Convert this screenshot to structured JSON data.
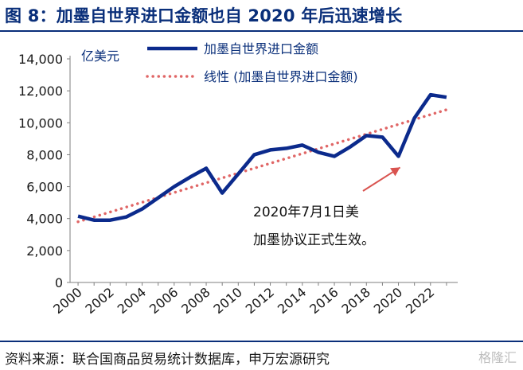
{
  "header": {
    "title": "图 8：加墨自世界进口金额也自 2020 年后迅速增长"
  },
  "footer": {
    "source": "资料来源：联合国商品贸易统计数据库，申万宏源研究",
    "watermark": "格隆汇"
  },
  "colors": {
    "title": "#0a2f7a",
    "series_line": "#0b2a8c",
    "trend_line": "#e06666"
  },
  "chart_data": {
    "type": "line",
    "unit_label": "亿美元",
    "x": [
      2000,
      2001,
      2002,
      2003,
      2004,
      2005,
      2006,
      2007,
      2008,
      2009,
      2010,
      2011,
      2012,
      2013,
      2014,
      2015,
      2016,
      2017,
      2018,
      2019,
      2020,
      2021,
      2022,
      2023
    ],
    "series": [
      {
        "name": "加墨自世界进口金额",
        "values": [
          4150,
          3900,
          3900,
          4100,
          4600,
          5300,
          6000,
          6600,
          7150,
          5600,
          6800,
          8000,
          8300,
          8400,
          8600,
          8150,
          7900,
          8500,
          9200,
          9100,
          7900,
          10300,
          11750,
          11600
        ]
      },
      {
        "name": "线性 (加墨自世界进口金额)",
        "style": "dotted",
        "values": [
          3800,
          4105,
          4410,
          4715,
          5020,
          5325,
          5630,
          5935,
          6240,
          6545,
          6850,
          7155,
          7460,
          7765,
          8070,
          8375,
          8680,
          8985,
          9290,
          9595,
          9900,
          10205,
          10510,
          10815
        ]
      }
    ],
    "y_ticks": [
      "0",
      "2,000",
      "4,000",
      "6,000",
      "8,000",
      "10,000",
      "12,000",
      "14,000"
    ],
    "x_ticks": [
      "2000",
      "2002",
      "2004",
      "2006",
      "2008",
      "2010",
      "2012",
      "2014",
      "2016",
      "2018",
      "2020",
      "2022"
    ],
    "ylim": [
      0,
      14000
    ],
    "grid": false,
    "legend": "top",
    "annotation": {
      "lines": [
        "2020年7月1日美",
        "加墨协议正式生效。"
      ],
      "points_to": {
        "x": 2020,
        "y": 7900
      }
    }
  }
}
